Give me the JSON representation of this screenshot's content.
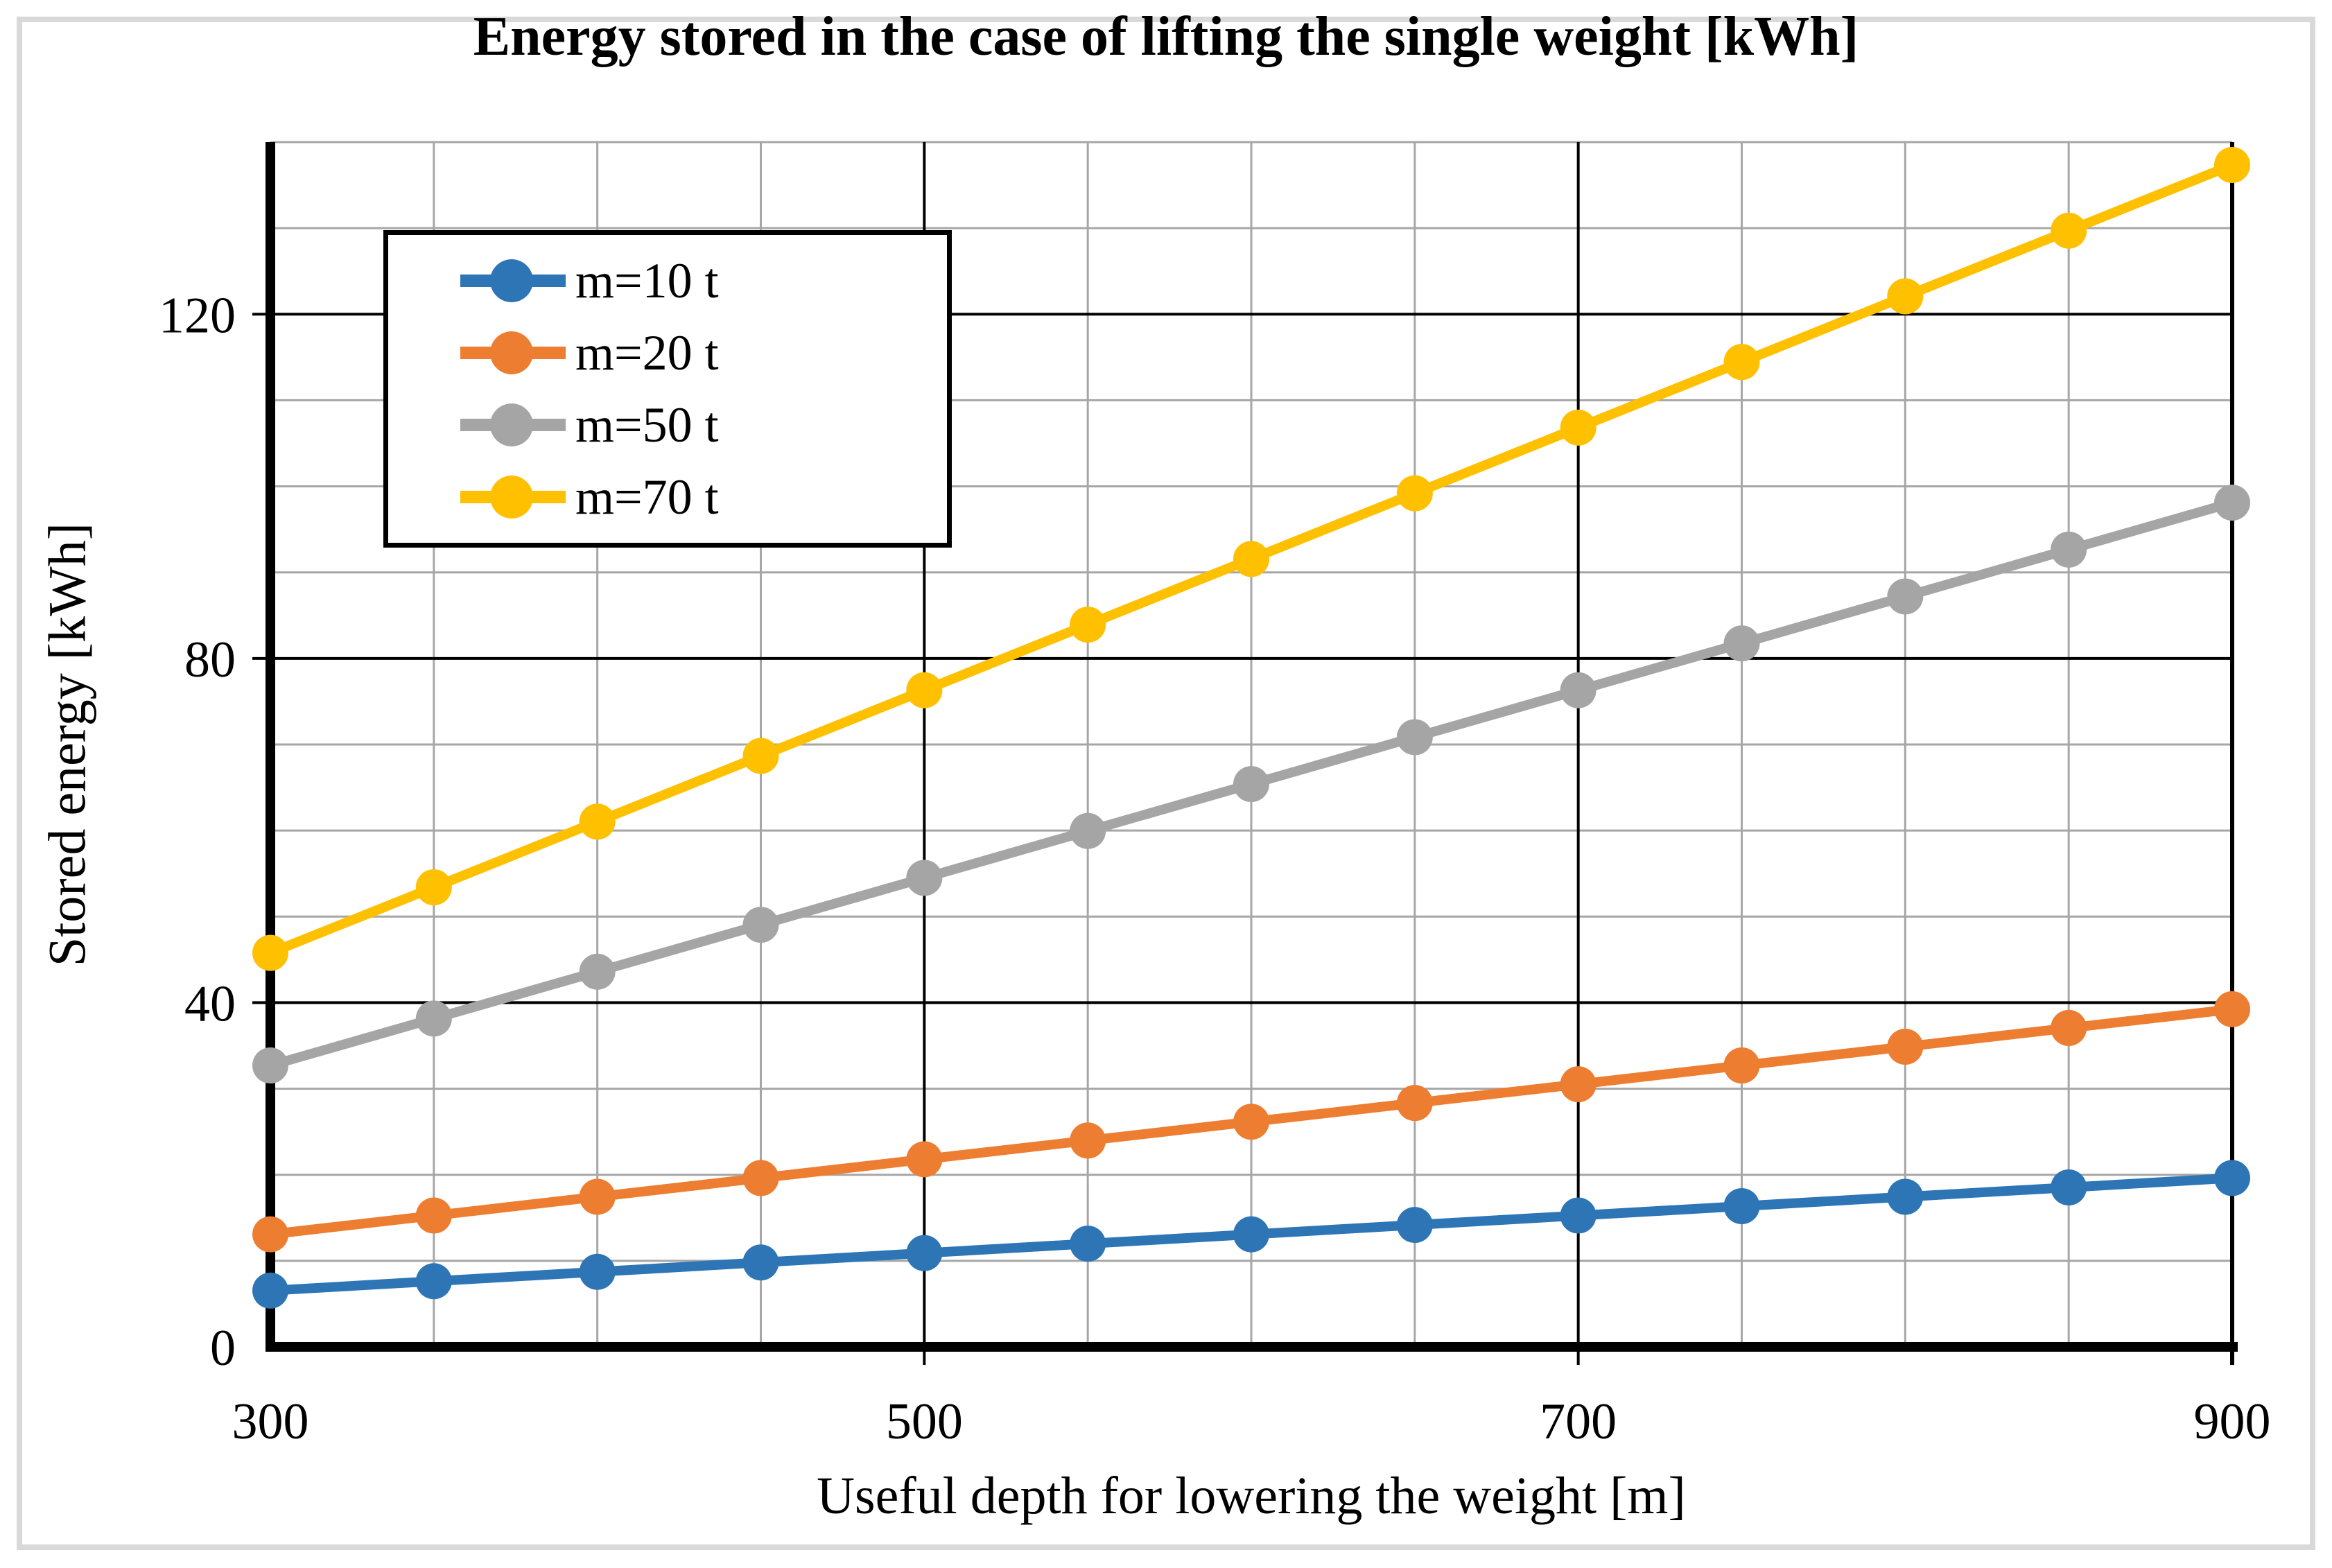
{
  "figure": {
    "background": "#FFFFFF",
    "border_color": "#D9D9D9"
  },
  "chart_data": {
    "type": "line",
    "title": "Energy stored in the case of lifting the single weight [kWh]",
    "xlabel": "Useful depth for lowering the weight [m]",
    "ylabel": "Stored energy [kWh]",
    "x": [
      300,
      350,
      400,
      450,
      500,
      550,
      600,
      650,
      700,
      750,
      800,
      850,
      900
    ],
    "series": [
      {
        "name": "m=10 t",
        "color": "#2E75B6",
        "values": [
          6.54,
          7.63,
          8.72,
          9.81,
          10.9,
          11.99,
          13.08,
          14.17,
          15.26,
          16.35,
          17.44,
          18.53,
          19.62
        ]
      },
      {
        "name": "m=20 t",
        "color": "#ED7D31",
        "values": [
          13.08,
          15.26,
          17.44,
          19.62,
          21.8,
          23.98,
          26.16,
          28.34,
          30.52,
          32.7,
          34.88,
          37.06,
          39.24
        ]
      },
      {
        "name": "m=50 t",
        "color": "#A5A5A5",
        "values": [
          32.7,
          38.15,
          43.6,
          49.05,
          54.5,
          59.95,
          65.4,
          70.85,
          76.3,
          81.75,
          87.2,
          92.65,
          98.1
        ]
      },
      {
        "name": "m=70 t",
        "color": "#FFC000",
        "values": [
          45.78,
          53.41,
          61.04,
          68.67,
          76.3,
          83.93,
          91.56,
          99.19,
          106.82,
          114.45,
          122.08,
          129.71,
          137.34
        ]
      }
    ],
    "axes": {
      "x": {
        "min": 300,
        "max": 900,
        "tick_labels": [
          300,
          500,
          700,
          900
        ],
        "minor_step": 50,
        "major_gridlines": [
          500,
          700
        ]
      },
      "y": {
        "min": 0,
        "max": 140,
        "tick_labels": [
          0,
          40,
          80,
          120
        ],
        "minor_step": 10,
        "major_gridlines": [
          40,
          80,
          120
        ]
      }
    },
    "grid": {
      "on": true,
      "minor_color": "#A6A6A6",
      "major_color": "#000000"
    },
    "legend_position": "top-left-inside"
  }
}
